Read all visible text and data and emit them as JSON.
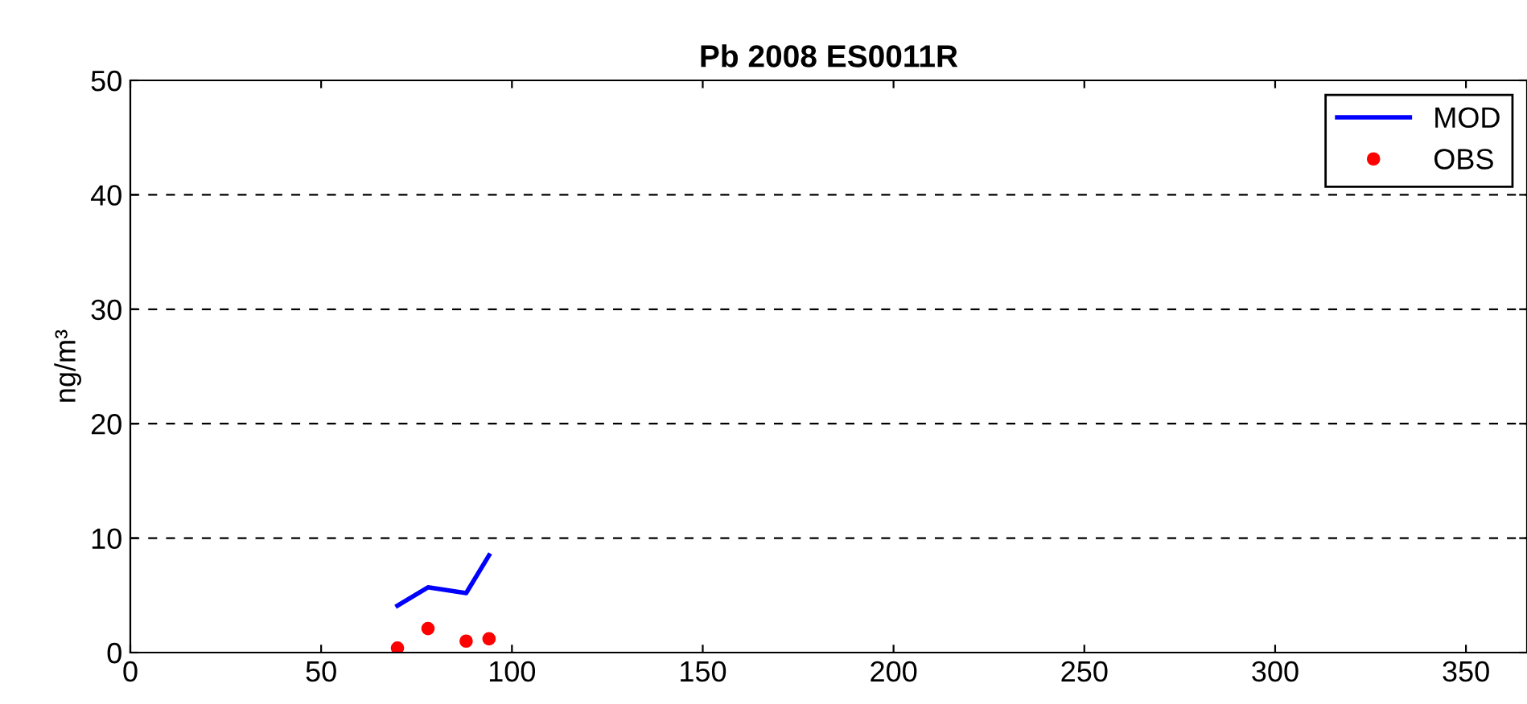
{
  "chart_data": {
    "type": "line",
    "title": "Pb 2008 ES0011R",
    "ylabel": "ng/m³",
    "series": [
      {
        "name": "MOD",
        "color": "#0000ff",
        "x": [
          70,
          78,
          88,
          94
        ],
        "values": [
          4.1,
          5.7,
          5.2,
          8.5
        ]
      },
      {
        "name": "OBS",
        "type": "scatter",
        "color": "#ff0000",
        "marker": "circle",
        "x": [
          70,
          78,
          88,
          94
        ],
        "values": [
          0.4,
          2.1,
          1.0,
          1.2
        ]
      }
    ],
    "xlim": [
      0,
      366
    ],
    "xticks": [
      0,
      50,
      100,
      150,
      200,
      250,
      300,
      350
    ],
    "ylim": [
      0,
      50
    ],
    "yticks": [
      0,
      10,
      20,
      30,
      40,
      50
    ],
    "grid": "y",
    "legend": "top right"
  }
}
